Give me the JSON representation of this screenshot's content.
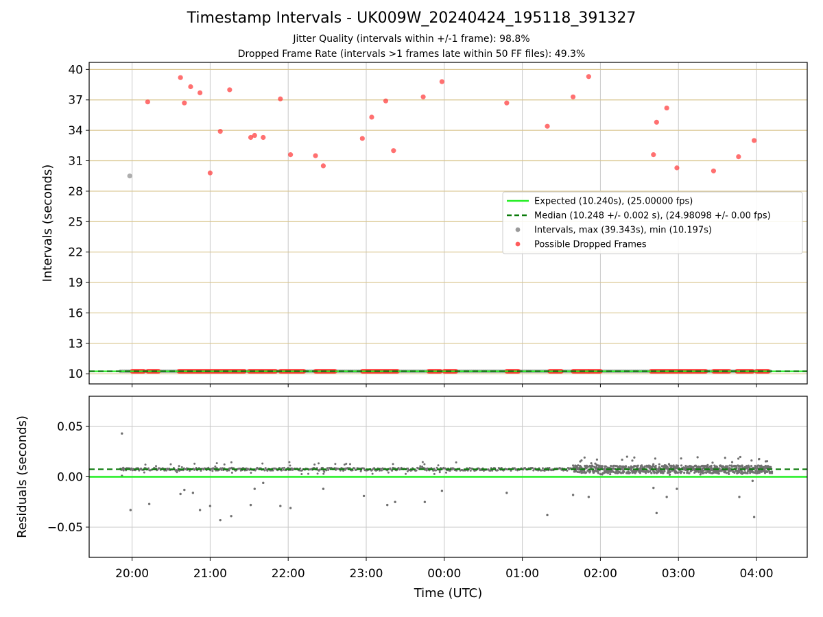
{
  "title": "Timestamp Intervals - UK009W_20240424_195118_391327",
  "subtitle1": "Jitter Quality (intervals within +/-1 frame): 98.8%",
  "subtitle2": "Dropped Frame Rate (intervals >1 frames late within 50 FF files): 49.3%",
  "colors": {
    "expected": "#22ee22",
    "median": "#0a7a0a",
    "intervals": "#9a9a9a",
    "dropped": "#ff3333",
    "hgrid_top": "#d8c48c",
    "grid": "#c8c8c8",
    "residual_points": "#707070"
  },
  "chart_data": [
    {
      "type": "scatter",
      "panel": "intervals",
      "ylabel": "Intervals (seconds)",
      "ylim": [
        9.0,
        40.7
      ],
      "yticks": [
        10,
        13,
        16,
        19,
        22,
        25,
        28,
        31,
        34,
        37,
        40
      ],
      "x_unit": "hours since 20:00 UTC",
      "xlim": [
        -0.55,
        8.65
      ],
      "expected": 10.24,
      "median": 10.248,
      "legend_position": "center-right",
      "legend": [
        {
          "name": "Expected (10.240s), (25.00000 fps)",
          "style": "solid-line"
        },
        {
          "name": "Median (10.248 +/- 0.002 s), (24.98098 +/- 0.00 fps)",
          "style": "dashed-line"
        },
        {
          "name": "Intervals, max (39.343s), min (10.197s)",
          "style": "gray-dot"
        },
        {
          "name": "Possible Dropped Frames",
          "style": "red-dot"
        }
      ],
      "dropped_frames": [
        {
          "x": 0.2,
          "y": 36.8
        },
        {
          "x": 0.62,
          "y": 39.2
        },
        {
          "x": 0.67,
          "y": 36.7
        },
        {
          "x": 0.75,
          "y": 38.3
        },
        {
          "x": 0.87,
          "y": 37.7
        },
        {
          "x": 1.0,
          "y": 29.8
        },
        {
          "x": 1.13,
          "y": 33.9
        },
        {
          "x": 1.25,
          "y": 38.0
        },
        {
          "x": 1.52,
          "y": 33.3
        },
        {
          "x": 1.57,
          "y": 33.5
        },
        {
          "x": 1.68,
          "y": 33.3
        },
        {
          "x": 1.9,
          "y": 37.1
        },
        {
          "x": 2.03,
          "y": 31.6
        },
        {
          "x": 2.35,
          "y": 31.5
        },
        {
          "x": 2.45,
          "y": 30.5
        },
        {
          "x": 2.95,
          "y": 33.2
        },
        {
          "x": 3.07,
          "y": 35.3
        },
        {
          "x": 3.25,
          "y": 36.9
        },
        {
          "x": 3.35,
          "y": 32.0
        },
        {
          "x": 3.73,
          "y": 37.3
        },
        {
          "x": 3.97,
          "y": 38.8
        },
        {
          "x": 4.8,
          "y": 36.7
        },
        {
          "x": 5.32,
          "y": 34.4
        },
        {
          "x": 5.65,
          "y": 37.3
        },
        {
          "x": 5.85,
          "y": 39.3
        },
        {
          "x": 6.68,
          "y": 31.6
        },
        {
          "x": 6.72,
          "y": 34.8
        },
        {
          "x": 6.85,
          "y": 36.2
        },
        {
          "x": 6.98,
          "y": 30.3
        },
        {
          "x": 7.45,
          "y": 30.0
        },
        {
          "x": 7.77,
          "y": 31.4
        },
        {
          "x": 7.97,
          "y": 33.0
        }
      ],
      "gray_outliers": [
        {
          "x": -0.03,
          "y": 29.5
        }
      ],
      "baseline_y": 10.25,
      "dropped_clusters": [
        [
          0.0,
          0.15
        ],
        [
          0.2,
          0.35
        ],
        [
          0.6,
          1.45
        ],
        [
          1.5,
          1.85
        ],
        [
          1.9,
          2.2
        ],
        [
          2.35,
          2.6
        ],
        [
          2.95,
          3.4
        ],
        [
          3.8,
          3.95
        ],
        [
          4.0,
          4.15
        ],
        [
          4.8,
          4.95
        ],
        [
          5.35,
          5.5
        ],
        [
          5.65,
          5.85
        ],
        [
          5.85,
          6.0
        ],
        [
          6.65,
          7.35
        ],
        [
          7.45,
          7.65
        ],
        [
          7.75,
          7.95
        ],
        [
          8.0,
          8.15
        ]
      ],
      "baseline_span": [
        -0.15,
        8.2
      ]
    },
    {
      "type": "scatter",
      "panel": "residuals",
      "ylabel": "Residuals (seconds)",
      "xlabel": "Time (UTC)",
      "ylim": [
        -0.08,
        0.08
      ],
      "yticks": [
        0.05,
        0.0,
        -0.05
      ],
      "ytick_labels": [
        "0.05",
        "0.00",
        "−0.05"
      ],
      "xlim": [
        -0.55,
        8.65
      ],
      "xticks": [
        0,
        1,
        2,
        3,
        4,
        5,
        6,
        7,
        8
      ],
      "xtick_labels": [
        "20:00",
        "21:00",
        "22:00",
        "23:00",
        "00:00",
        "01:00",
        "02:00",
        "03:00",
        "04:00"
      ],
      "expected": 0.0,
      "median": 0.0075,
      "outliers": [
        {
          "x": -0.13,
          "y": 0.043
        },
        {
          "x": -0.13,
          "y": 0.001
        },
        {
          "x": -0.02,
          "y": -0.033
        },
        {
          "x": 0.22,
          "y": -0.027
        },
        {
          "x": 0.62,
          "y": -0.017
        },
        {
          "x": 0.67,
          "y": -0.013
        },
        {
          "x": 0.78,
          "y": -0.016
        },
        {
          "x": 0.87,
          "y": -0.033
        },
        {
          "x": 1.0,
          "y": -0.029
        },
        {
          "x": 1.13,
          "y": -0.043
        },
        {
          "x": 1.27,
          "y": -0.039
        },
        {
          "x": 1.52,
          "y": -0.028
        },
        {
          "x": 1.57,
          "y": -0.012
        },
        {
          "x": 1.68,
          "y": -0.006
        },
        {
          "x": 1.9,
          "y": -0.029
        },
        {
          "x": 2.03,
          "y": -0.031
        },
        {
          "x": 2.45,
          "y": -0.012
        },
        {
          "x": 2.97,
          "y": -0.019
        },
        {
          "x": 3.27,
          "y": -0.028
        },
        {
          "x": 3.37,
          "y": -0.025
        },
        {
          "x": 3.75,
          "y": -0.025
        },
        {
          "x": 3.97,
          "y": -0.014
        },
        {
          "x": 4.8,
          "y": -0.016
        },
        {
          "x": 5.32,
          "y": -0.038
        },
        {
          "x": 5.65,
          "y": -0.018
        },
        {
          "x": 5.85,
          "y": -0.02
        },
        {
          "x": 6.68,
          "y": -0.011
        },
        {
          "x": 6.72,
          "y": -0.036
        },
        {
          "x": 6.85,
          "y": -0.02
        },
        {
          "x": 6.98,
          "y": -0.012
        },
        {
          "x": 7.78,
          "y": -0.02
        },
        {
          "x": 7.97,
          "y": -0.04
        },
        {
          "x": 7.95,
          "y": -0.004
        }
      ],
      "band_center": 0.0075,
      "band_quiet_span": [
        -0.15,
        5.65
      ],
      "band_noisy_span": [
        5.65,
        8.2
      ],
      "quiet_spread": 0.0015,
      "noisy_spread": 0.004
    }
  ]
}
